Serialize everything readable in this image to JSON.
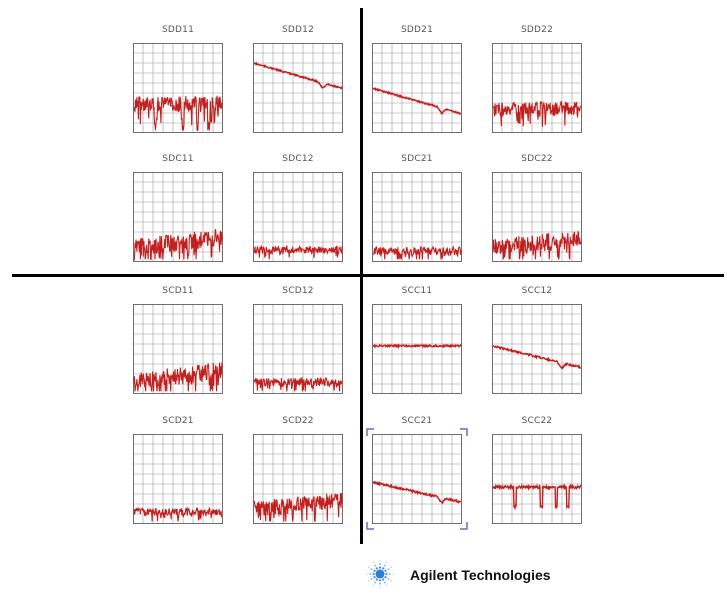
{
  "colors": {
    "trace": "#c21f1f",
    "grid": "#9a9a9a",
    "frame": "#6e6e6e",
    "selection": "#5f6fc9",
    "divider": "#000000",
    "logo_blue": "#2a7fd4"
  },
  "chart_data": [
    {
      "type": "line",
      "title": "SDD11",
      "shape": "noisy-dip",
      "level": 0.62,
      "noise": 0.35,
      "slope": 0
    },
    {
      "type": "line",
      "title": "SDD12",
      "shape": "falling",
      "level": 0.22,
      "noise": 0.04,
      "slope": 0.28
    },
    {
      "type": "line",
      "title": "SDD21",
      "shape": "falling",
      "level": 0.5,
      "noise": 0.04,
      "slope": 0.28
    },
    {
      "type": "line",
      "title": "SDD22",
      "shape": "noisy",
      "level": 0.68,
      "noise": 0.3,
      "slope": 0
    },
    {
      "type": "line",
      "title": "SDC11",
      "shape": "noisy-rise",
      "level": 0.78,
      "noise": 0.4,
      "slope": -0.12
    },
    {
      "type": "line",
      "title": "SDC12",
      "shape": "noisy-floor",
      "level": 0.84,
      "noise": 0.16,
      "slope": 0
    },
    {
      "type": "line",
      "title": "SDC21",
      "shape": "noisy-floor",
      "level": 0.85,
      "noise": 0.18,
      "slope": 0
    },
    {
      "type": "line",
      "title": "SDC22",
      "shape": "noisy-rise",
      "level": 0.78,
      "noise": 0.38,
      "slope": -0.1
    },
    {
      "type": "line",
      "title": "SCD11",
      "shape": "noisy-rise",
      "level": 0.8,
      "noise": 0.4,
      "slope": -0.12
    },
    {
      "type": "line",
      "title": "SCD12",
      "shape": "noisy-floor",
      "level": 0.84,
      "noise": 0.18,
      "slope": 0
    },
    {
      "type": "line",
      "title": "SCC11",
      "shape": "flat",
      "level": 0.46,
      "noise": 0.05,
      "slope": 0
    },
    {
      "type": "line",
      "title": "SCC12",
      "shape": "falling",
      "level": 0.46,
      "noise": 0.05,
      "slope": 0.24
    },
    {
      "type": "line",
      "title": "SCD21",
      "shape": "noisy-floor",
      "level": 0.84,
      "noise": 0.16,
      "slope": 0
    },
    {
      "type": "line",
      "title": "SCD22",
      "shape": "noisy-rise",
      "level": 0.78,
      "noise": 0.36,
      "slope": -0.1
    },
    {
      "type": "line",
      "title": "SCC21",
      "shape": "falling",
      "level": 0.53,
      "noise": 0.05,
      "slope": 0.22,
      "selected": true
    },
    {
      "type": "line",
      "title": "SCC22",
      "shape": "flat-dip",
      "level": 0.58,
      "noise": 0.08,
      "slope": 0
    }
  ],
  "logo": {
    "text": "Agilent Technologies",
    "icon": "agilent-spark-icon"
  }
}
